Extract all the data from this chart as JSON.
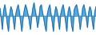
{
  "values": [
    2.0,
    -0.5,
    -3.5,
    1.5,
    3.0,
    1.0,
    -2.0,
    -4.0,
    0.5,
    2.5,
    1.5,
    -1.0,
    -3.5,
    0.5,
    2.0,
    3.0,
    1.0,
    -1.5,
    -4.0,
    -0.5,
    1.5,
    3.0,
    2.0,
    0.5,
    -1.0,
    -3.5,
    -0.5,
    2.0,
    3.5,
    1.5,
    -0.5,
    -3.0,
    -1.0,
    2.5,
    3.0,
    1.0,
    -0.5,
    -2.5,
    -4.0,
    0.5,
    2.0,
    3.0,
    0.5,
    -1.5,
    -4.0,
    0.5,
    2.5,
    1.5,
    -1.0,
    -3.5,
    0.5,
    2.0,
    3.0,
    1.0,
    -1.5,
    -4.0,
    1.0,
    2.5,
    1.0,
    -2.5,
    -4.0,
    1.5,
    2.5,
    3.0,
    1.5,
    -0.5,
    -3.5,
    -1.0,
    2.0,
    3.0,
    1.5,
    -0.5,
    -3.0,
    1.0,
    2.5,
    1.5,
    -1.5,
    -3.5,
    1.0,
    2.5
  ],
  "fill_color": "#5BA8D9",
  "line_color": "#2275B0",
  "bg_color": "#ffffff",
  "ylim": [
    -5.0,
    4.5
  ]
}
